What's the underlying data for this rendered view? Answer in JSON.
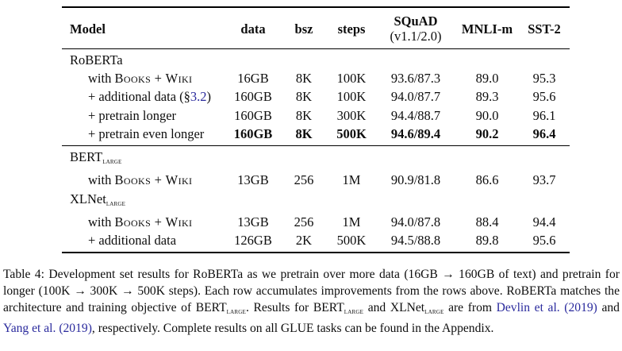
{
  "colors": {
    "link_blue": "#2a2a9d",
    "text": "#0d0d0d",
    "background": "#ffffff",
    "rule": "#000000"
  },
  "table": {
    "headers": [
      {
        "label": "Model",
        "sub": ""
      },
      {
        "label": "data",
        "sub": ""
      },
      {
        "label": "bsz",
        "sub": ""
      },
      {
        "label": "steps",
        "sub": ""
      },
      {
        "label": "SQuAD",
        "sub": "(v1.1/2.0)"
      },
      {
        "label": "MNLI-m",
        "sub": ""
      },
      {
        "label": "SST-2",
        "sub": ""
      }
    ],
    "column_keys": [
      "data",
      "bsz",
      "steps",
      "squad",
      "mnli",
      "sst"
    ],
    "sections": [
      {
        "rows": [
          {
            "model": [
              {
                "t": "RoBERTa",
                "s": "plain"
              }
            ],
            "indent": false,
            "cells": [
              "",
              "",
              "",
              "",
              "",
              ""
            ],
            "bold": false
          },
          {
            "model": [
              {
                "t": "with ",
                "s": "plain"
              },
              {
                "t": "Books + Wiki",
                "s": "sc"
              }
            ],
            "indent": true,
            "cells": [
              "16GB",
              "8K",
              "100K",
              "93.6/87.3",
              "89.0",
              "95.3"
            ],
            "bold": false
          },
          {
            "model": [
              {
                "t": "+ additional data (§",
                "s": "plain"
              },
              {
                "t": "3.2",
                "s": "link"
              },
              {
                "t": ")",
                "s": "plain"
              }
            ],
            "indent": true,
            "cells": [
              "160GB",
              "8K",
              "100K",
              "94.0/87.7",
              "89.3",
              "95.6"
            ],
            "bold": false
          },
          {
            "model": [
              {
                "t": "+ pretrain longer",
                "s": "plain"
              }
            ],
            "indent": true,
            "cells": [
              "160GB",
              "8K",
              "300K",
              "94.4/88.7",
              "90.0",
              "96.1"
            ],
            "bold": false
          },
          {
            "model": [
              {
                "t": "+ pretrain even longer",
                "s": "plain"
              }
            ],
            "indent": true,
            "cells": [
              "160GB",
              "8K",
              "500K",
              "94.6/89.4",
              "90.2",
              "96.4"
            ],
            "bold": true
          }
        ]
      },
      {
        "rows": [
          {
            "model": [
              {
                "t": "BERT",
                "s": "plain"
              },
              {
                "t": "large",
                "s": "sub"
              }
            ],
            "indent": false,
            "cells": [
              "",
              "",
              "",
              "",
              "",
              ""
            ],
            "bold": false
          },
          {
            "model": [
              {
                "t": "with ",
                "s": "plain"
              },
              {
                "t": "Books + Wiki",
                "s": "sc"
              }
            ],
            "indent": true,
            "cells": [
              "13GB",
              "256",
              "1M",
              "90.9/81.8",
              "86.6",
              "93.7"
            ],
            "bold": false
          },
          {
            "model": [
              {
                "t": "XLNet",
                "s": "plain"
              },
              {
                "t": "large",
                "s": "sub"
              }
            ],
            "indent": false,
            "cells": [
              "",
              "",
              "",
              "",
              "",
              ""
            ],
            "bold": false
          },
          {
            "model": [
              {
                "t": "with ",
                "s": "plain"
              },
              {
                "t": "Books + Wiki",
                "s": "sc"
              }
            ],
            "indent": true,
            "cells": [
              "13GB",
              "256",
              "1M",
              "94.0/87.8",
              "88.4",
              "94.4"
            ],
            "bold": false
          },
          {
            "model": [
              {
                "t": "+ additional data",
                "s": "plain"
              }
            ],
            "indent": true,
            "cells": [
              "126GB",
              "2K",
              "500K",
              "94.5/88.8",
              "89.8",
              "95.6"
            ],
            "bold": false
          }
        ]
      }
    ]
  },
  "caption": {
    "parts": [
      {
        "t": "Table 4: Development set results for RoBERTa as we pretrain over more data (16GB → 160GB of text) and pretrain for longer (100K → 300K → 500K steps). Each row accumulates improvements from the rows above. RoBERTa matches the architecture and training objective of BERT",
        "s": "plain"
      },
      {
        "t": "large",
        "s": "sub"
      },
      {
        "t": ". Results for BERT",
        "s": "plain"
      },
      {
        "t": "large",
        "s": "sub"
      },
      {
        "t": " and XLNet",
        "s": "plain"
      },
      {
        "t": "large",
        "s": "sub"
      },
      {
        "t": " are from ",
        "s": "plain"
      },
      {
        "t": "Devlin et al. (2019)",
        "s": "link"
      },
      {
        "t": " and ",
        "s": "plain"
      },
      {
        "t": "Yang et al. (2019)",
        "s": "link"
      },
      {
        "t": ", respectively. Complete results on all GLUE tasks can be found in the Appendix.",
        "s": "plain"
      }
    ]
  }
}
